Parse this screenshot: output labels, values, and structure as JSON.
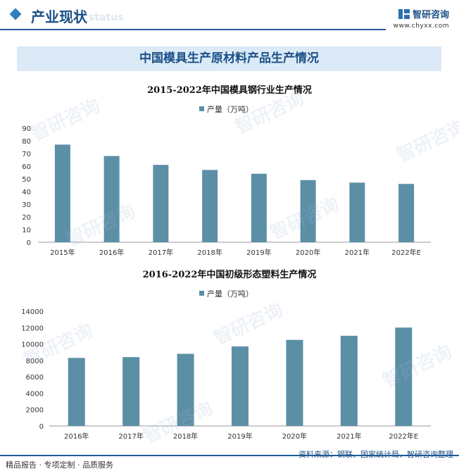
{
  "header": {
    "title": "产业现状",
    "ghost_text": "status"
  },
  "brand": {
    "name": "智研咨询",
    "url": "www.chyxx.com"
  },
  "banner": {
    "title": "中国模具生产原材料产品生产情况"
  },
  "chart_data": [
    {
      "type": "bar",
      "title": "2015-2022年中国模具钢行业生产情况",
      "legend": "top",
      "categories": [
        "2015年",
        "2016年",
        "2017年",
        "2018年",
        "2019年",
        "2020年",
        "2021年",
        "2022年E"
      ],
      "series": [
        {
          "name": "产量（万吨）",
          "values": [
            77,
            68,
            61,
            57,
            54,
            49,
            47,
            46
          ]
        }
      ],
      "ylim": [
        0,
        90
      ],
      "yticks": [
        "0",
        "10",
        "20",
        "30",
        "40",
        "50",
        "60",
        "70",
        "80",
        "90"
      ],
      "grid": false,
      "color": "#5b8fa6"
    },
    {
      "type": "bar",
      "title": "2016-2022年中国初级形态塑料生产情况",
      "legend": "top",
      "categories": [
        "2016年",
        "2017年",
        "2018年",
        "2019年",
        "2020年",
        "2021年",
        "2022年E"
      ],
      "series": [
        {
          "name": "产量（万吨）",
          "values": [
            8300,
            8400,
            8800,
            9700,
            10500,
            11000,
            12000
          ]
        }
      ],
      "ylim": [
        0,
        14000
      ],
      "yticks": [
        "0",
        "2000",
        "4000",
        "6000",
        "8000",
        "10000",
        "12000",
        "14000"
      ],
      "grid": false,
      "color": "#5b8fa6"
    }
  ],
  "footer": {
    "left": "精品报告 · 专项定制 · 品质服务",
    "right": "资料来源：钢联、国家统计局、智研咨询整理"
  },
  "watermark": "智研咨询"
}
